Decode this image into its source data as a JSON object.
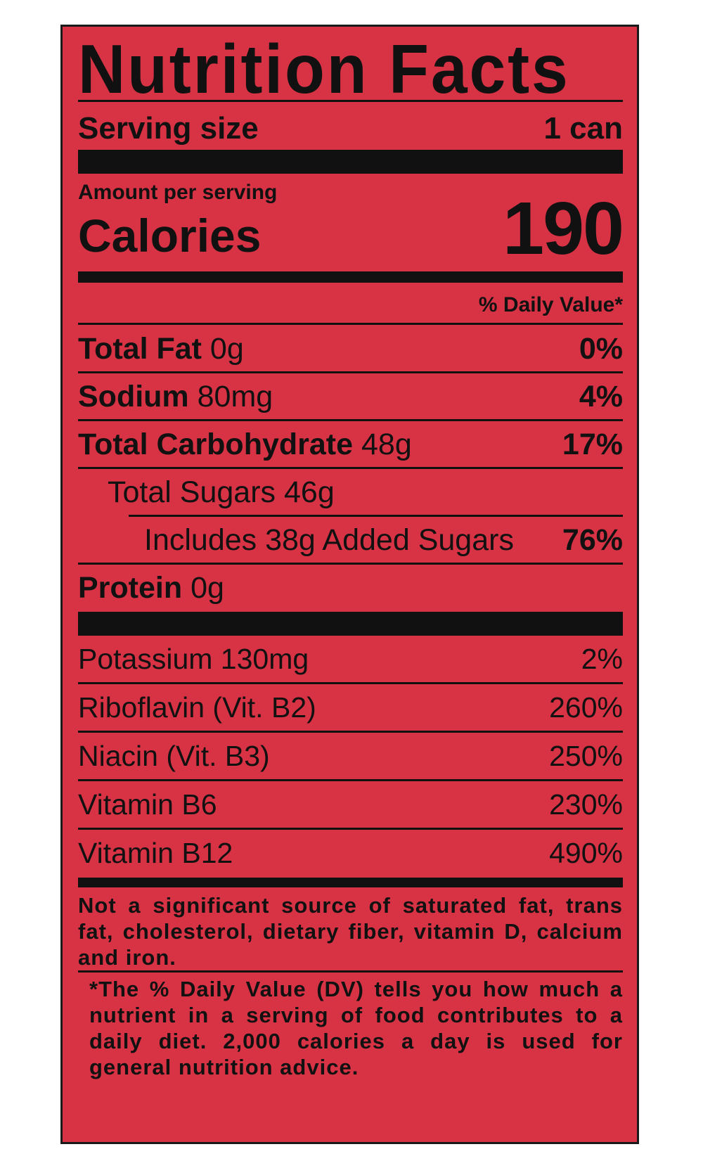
{
  "label": {
    "title": "Nutrition Facts",
    "serving_size_label": "Serving size",
    "serving_size_value": "1 can",
    "amount_per_serving": "Amount per serving",
    "calories_label": "Calories",
    "calories_value": "190",
    "dv_header": "% Daily Value*"
  },
  "nutrients": [
    {
      "name": "Total Fat",
      "amount": "0g",
      "dv": "0%"
    },
    {
      "name": "Sodium",
      "amount": "80mg",
      "dv": "4%"
    },
    {
      "name": "Total Carbohydrate",
      "amount": "48g",
      "dv": "17%"
    },
    {
      "name": "Total Sugars",
      "amount": "46g",
      "dv": ""
    },
    {
      "name": "Includes 38g Added Sugars",
      "amount": "",
      "dv": "76%"
    },
    {
      "name": "Protein",
      "amount": "0g",
      "dv": ""
    }
  ],
  "vitamins": [
    {
      "name": "Potassium 130mg",
      "dv": "2%"
    },
    {
      "name": "Riboflavin (Vit. B2)",
      "dv": "260%"
    },
    {
      "name": "Niacin (Vit. B3)",
      "dv": "250%"
    },
    {
      "name": "Vitamin B6",
      "dv": "230%"
    },
    {
      "name": "Vitamin B12",
      "dv": "490%"
    }
  ],
  "footnotes": {
    "not_significant": "Not a significant source of saturated fat, trans fat, cholesterol, dietary fiber, vitamin D, calcium and iron.",
    "dv_note": "*The % Daily Value (DV) tells you how much a nutrient in a serving of food contributes to a daily diet. 2,000 calories a day is used for general nutrition advice."
  },
  "colors": {
    "panel_background": "#d73345",
    "ink": "#111111"
  }
}
